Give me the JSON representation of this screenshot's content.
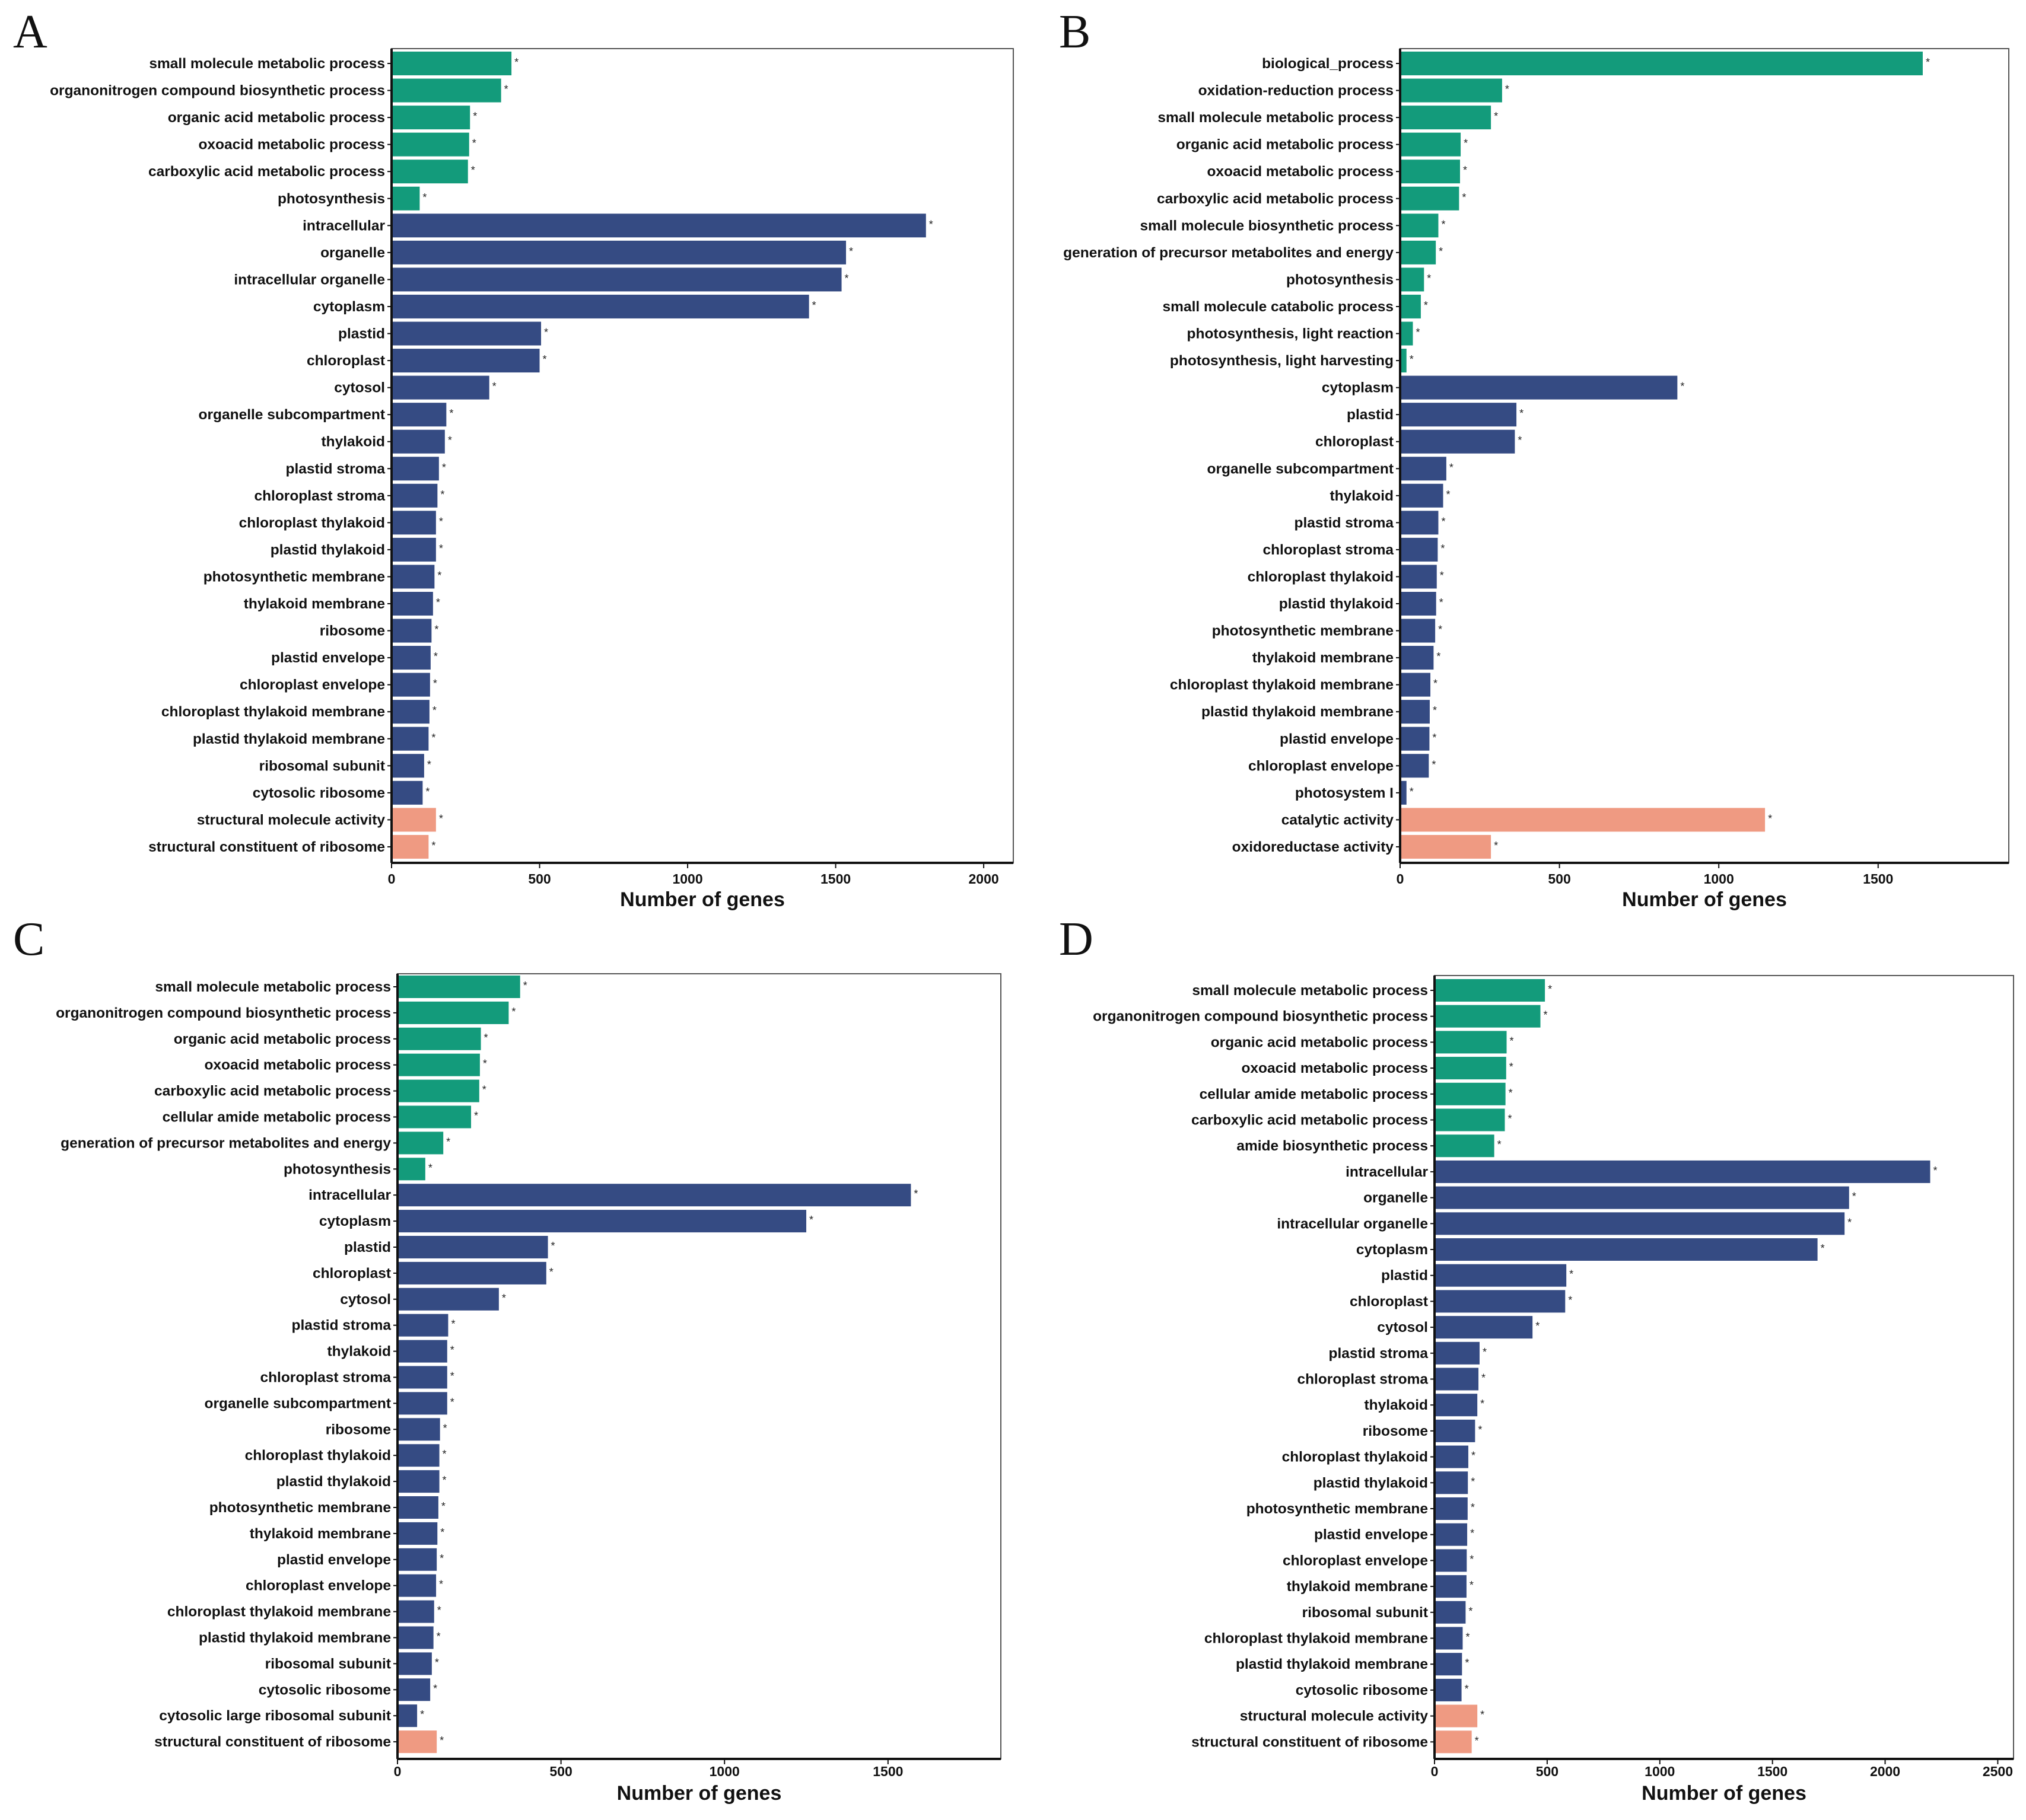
{
  "colors": {
    "bp": "#139b7b",
    "cc": "#354b83",
    "mf": "#ef9a82",
    "frame": "#555555",
    "axis": "#111111"
  },
  "chart_data": [
    {
      "panel": "A",
      "type": "bar",
      "orientation": "horizontal",
      "xlabel": "Number of genes",
      "xlim": [
        0,
        2100
      ],
      "xticks": [
        0,
        500,
        1000,
        1500,
        2000
      ],
      "significance_marker": "*",
      "categories": [
        "small molecule metabolic process",
        "organonitrogen compound biosynthetic process",
        "organic acid metabolic process",
        "oxoacid metabolic process",
        "carboxylic acid metabolic process",
        "photosynthesis",
        "intracellular",
        "organelle",
        "intracellular organelle",
        "cytoplasm",
        "plastid",
        "chloroplast",
        "cytosol",
        "organelle subcompartment",
        "thylakoid",
        "plastid stroma",
        "chloroplast stroma",
        "chloroplast thylakoid",
        "plastid thylakoid",
        "photosynthetic membrane",
        "thylakoid membrane",
        "ribosome",
        "plastid envelope",
        "chloroplast envelope",
        "chloroplast thylakoid membrane",
        "plastid thylakoid membrane",
        "ribosomal subunit",
        "cytosolic ribosome",
        "structural molecule activity",
        "structural constituent of ribosome"
      ],
      "values": [
        405,
        370,
        265,
        262,
        258,
        95,
        1805,
        1535,
        1520,
        1410,
        505,
        500,
        330,
        185,
        180,
        160,
        155,
        150,
        150,
        145,
        140,
        135,
        132,
        130,
        128,
        125,
        110,
        105,
        150,
        125
      ],
      "groups": [
        "bp",
        "bp",
        "bp",
        "bp",
        "bp",
        "bp",
        "cc",
        "cc",
        "cc",
        "cc",
        "cc",
        "cc",
        "cc",
        "cc",
        "cc",
        "cc",
        "cc",
        "cc",
        "cc",
        "cc",
        "cc",
        "cc",
        "cc",
        "cc",
        "cc",
        "cc",
        "cc",
        "cc",
        "mf",
        "mf"
      ]
    },
    {
      "panel": "B",
      "type": "bar",
      "orientation": "horizontal",
      "xlabel": "Number of genes",
      "xlim": [
        0,
        1910
      ],
      "xticks": [
        0,
        500,
        1000,
        1500
      ],
      "significance_marker": "*",
      "categories": [
        "biological_process",
        "oxidation-reduction process",
        "small molecule metabolic process",
        "organic acid metabolic process",
        "oxoacid metabolic process",
        "carboxylic acid metabolic process",
        "small molecule biosynthetic process",
        "generation of precursor metabolites and energy",
        "photosynthesis",
        "small molecule catabolic process",
        "photosynthesis, light reaction",
        "photosynthesis, light harvesting",
        "cytoplasm",
        "plastid",
        "chloroplast",
        "organelle subcompartment",
        "thylakoid",
        "plastid stroma",
        "chloroplast stroma",
        "chloroplast thylakoid",
        "plastid thylakoid",
        "photosynthetic membrane",
        "thylakoid membrane",
        "chloroplast thylakoid membrane",
        "plastid thylakoid membrane",
        "plastid envelope",
        "chloroplast envelope",
        "photosystem I",
        "catalytic activity",
        "oxidoreductase activity"
      ],
      "values": [
        1640,
        320,
        285,
        190,
        188,
        185,
        120,
        112,
        75,
        65,
        40,
        20,
        870,
        365,
        360,
        145,
        135,
        120,
        118,
        115,
        113,
        110,
        105,
        95,
        93,
        92,
        90,
        20,
        1145,
        285
      ],
      "groups": [
        "bp",
        "bp",
        "bp",
        "bp",
        "bp",
        "bp",
        "bp",
        "bp",
        "bp",
        "bp",
        "bp",
        "bp",
        "cc",
        "cc",
        "cc",
        "cc",
        "cc",
        "cc",
        "cc",
        "cc",
        "cc",
        "cc",
        "cc",
        "cc",
        "cc",
        "cc",
        "cc",
        "cc",
        "mf",
        "mf"
      ]
    },
    {
      "panel": "C",
      "type": "bar",
      "orientation": "horizontal",
      "xlabel": "Number of genes",
      "xlim": [
        0,
        1845
      ],
      "xticks": [
        0,
        500,
        1000,
        1500
      ],
      "significance_marker": "*",
      "categories": [
        "small molecule metabolic process",
        "organonitrogen compound biosynthetic process",
        "organic acid metabolic process",
        "oxoacid metabolic process",
        "carboxylic acid metabolic process",
        "cellular amide metabolic process",
        "generation of precursor metabolites and energy",
        "photosynthesis",
        "intracellular",
        "cytoplasm",
        "plastid",
        "chloroplast",
        "cytosol",
        "plastid stroma",
        "thylakoid",
        "chloroplast stroma",
        "organelle subcompartment",
        "ribosome",
        "chloroplast thylakoid",
        "plastid thylakoid",
        "photosynthetic membrane",
        "thylakoid membrane",
        "plastid envelope",
        "chloroplast envelope",
        "chloroplast thylakoid membrane",
        "plastid thylakoid membrane",
        "ribosomal subunit",
        "cytosolic ribosome",
        "cytosolic large ribosomal subunit",
        "structural constituent of ribosome"
      ],
      "values": [
        375,
        340,
        255,
        252,
        250,
        225,
        140,
        85,
        1570,
        1250,
        460,
        455,
        310,
        155,
        152,
        152,
        152,
        130,
        128,
        128,
        125,
        122,
        120,
        118,
        112,
        110,
        105,
        100,
        60,
        120
      ],
      "groups": [
        "bp",
        "bp",
        "bp",
        "bp",
        "bp",
        "bp",
        "bp",
        "bp",
        "cc",
        "cc",
        "cc",
        "cc",
        "cc",
        "cc",
        "cc",
        "cc",
        "cc",
        "cc",
        "cc",
        "cc",
        "cc",
        "cc",
        "cc",
        "cc",
        "cc",
        "cc",
        "cc",
        "cc",
        "cc",
        "mf"
      ]
    },
    {
      "panel": "D",
      "type": "bar",
      "orientation": "horizontal",
      "xlabel": "Number of genes",
      "xlim": [
        0,
        2570
      ],
      "xticks": [
        0,
        500,
        1000,
        1500,
        2000,
        2500
      ],
      "significance_marker": "*",
      "categories": [
        "small molecule metabolic process",
        "organonitrogen compound biosynthetic process",
        "organic acid metabolic process",
        "oxoacid metabolic process",
        "cellular amide metabolic process",
        "carboxylic acid metabolic process",
        "amide biosynthetic process",
        "intracellular",
        "organelle",
        "intracellular organelle",
        "cytoplasm",
        "plastid",
        "chloroplast",
        "cytosol",
        "plastid stroma",
        "chloroplast stroma",
        "thylakoid",
        "ribosome",
        "chloroplast thylakoid",
        "plastid thylakoid",
        "photosynthetic membrane",
        "plastid envelope",
        "chloroplast envelope",
        "thylakoid membrane",
        "ribosomal subunit",
        "chloroplast thylakoid membrane",
        "plastid thylakoid membrane",
        "cytosolic ribosome",
        "structural molecule activity",
        "structural constituent of ribosome"
      ],
      "values": [
        490,
        470,
        320,
        318,
        315,
        312,
        265,
        2200,
        1840,
        1820,
        1700,
        585,
        580,
        435,
        200,
        195,
        190,
        180,
        150,
        148,
        147,
        145,
        143,
        142,
        138,
        125,
        122,
        120,
        190,
        165
      ],
      "groups": [
        "bp",
        "bp",
        "bp",
        "bp",
        "bp",
        "bp",
        "bp",
        "cc",
        "cc",
        "cc",
        "cc",
        "cc",
        "cc",
        "cc",
        "cc",
        "cc",
        "cc",
        "cc",
        "cc",
        "cc",
        "cc",
        "cc",
        "cc",
        "cc",
        "cc",
        "cc",
        "cc",
        "cc",
        "mf",
        "mf"
      ]
    }
  ]
}
